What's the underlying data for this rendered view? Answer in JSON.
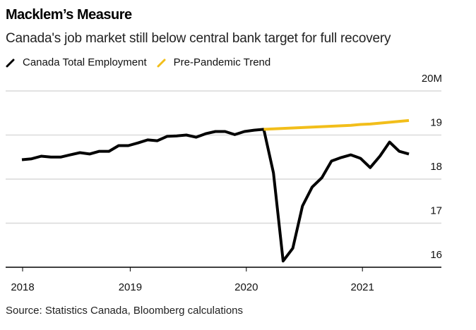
{
  "header": {
    "title": "Macklem’s Measure",
    "subtitle": "Canada's job market still below central bank target for full recovery"
  },
  "legend": [
    {
      "label": "Canada Total Employment",
      "color": "#000000"
    },
    {
      "label": "Pre-Pandemic Trend",
      "color": "#F2BE1A"
    }
  ],
  "footer": {
    "source": "Source: Statistics Canada, Bloomberg calculations"
  },
  "chart_data": {
    "type": "line",
    "title": "Macklem’s Measure",
    "subtitle": "Canada's job market still below central bank target for full recovery",
    "xlabel": "",
    "ylabel": "",
    "x_start": "2018-01",
    "x_end": "2021-05",
    "x_ticks": [
      {
        "label": "2018",
        "month_index": 0
      },
      {
        "label": "2019",
        "month_index": 12
      },
      {
        "label": "2020",
        "month_index": 24
      },
      {
        "label": "2021",
        "month_index": 36
      }
    ],
    "y_ticks": [
      {
        "label": "16",
        "value": 16
      },
      {
        "label": "17",
        "value": 17
      },
      {
        "label": "18",
        "value": 18
      },
      {
        "label": "19",
        "value": 19
      },
      {
        "label": "20M",
        "value": 20
      }
    ],
    "ylim": [
      16,
      20
    ],
    "y_axis_side": "right",
    "grid": true,
    "legend_position": "top-left",
    "series": [
      {
        "name": "Canada Total Employment",
        "color": "#000000",
        "start_month_index": 0,
        "values": [
          18.44,
          18.46,
          18.52,
          18.5,
          18.5,
          18.55,
          18.6,
          18.57,
          18.63,
          18.63,
          18.76,
          18.76,
          18.82,
          18.89,
          18.87,
          18.97,
          18.98,
          19.0,
          18.95,
          19.03,
          19.08,
          19.08,
          19.01,
          19.08,
          19.11,
          19.13,
          18.14,
          16.14,
          16.43,
          17.39,
          17.82,
          18.03,
          18.41,
          18.49,
          18.55,
          18.47,
          18.26,
          18.52,
          18.84,
          18.63,
          18.57
        ]
      },
      {
        "name": "Pre-Pandemic Trend",
        "color": "#F2BE1A",
        "start_month_index": 25,
        "values": [
          19.13,
          19.14,
          19.15,
          19.16,
          19.17,
          19.18,
          19.19,
          19.2,
          19.21,
          19.22,
          19.24,
          19.25,
          19.27,
          19.29,
          19.31,
          19.33
        ]
      }
    ]
  }
}
